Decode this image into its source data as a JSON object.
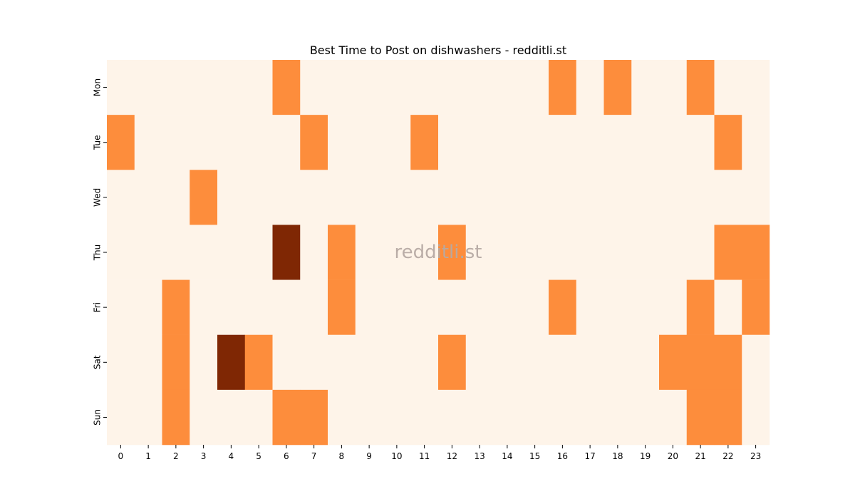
{
  "chart_data": {
    "type": "heatmap",
    "title": "Best Time to Post on dishwashers - redditli.st",
    "watermark": "redditli.st",
    "xlabel": "",
    "ylabel": "",
    "x_categories": [
      "0",
      "1",
      "2",
      "3",
      "4",
      "5",
      "6",
      "7",
      "8",
      "9",
      "10",
      "11",
      "12",
      "13",
      "14",
      "15",
      "16",
      "17",
      "18",
      "19",
      "20",
      "21",
      "22",
      "23"
    ],
    "y_categories": [
      "Mon",
      "Tue",
      "Wed",
      "Thu",
      "Fri",
      "Sat",
      "Sun"
    ],
    "values": [
      [
        0,
        0,
        0,
        0,
        0,
        0,
        1,
        0,
        0,
        0,
        0,
        0,
        0,
        0,
        0,
        0,
        1,
        0,
        1,
        0,
        0,
        1,
        0,
        0
      ],
      [
        1,
        0,
        0,
        0,
        0,
        0,
        0,
        1,
        0,
        0,
        0,
        1,
        0,
        0,
        0,
        0,
        0,
        0,
        0,
        0,
        0,
        0,
        1,
        0
      ],
      [
        0,
        0,
        0,
        1,
        0,
        0,
        0,
        0,
        0,
        0,
        0,
        0,
        0,
        0,
        0,
        0,
        0,
        0,
        0,
        0,
        0,
        0,
        0,
        0
      ],
      [
        0,
        0,
        0,
        0,
        0,
        0,
        2,
        0,
        1,
        0,
        0,
        0,
        1,
        0,
        0,
        0,
        0,
        0,
        0,
        0,
        0,
        0,
        1,
        1
      ],
      [
        0,
        0,
        1,
        0,
        0,
        0,
        0,
        0,
        1,
        0,
        0,
        0,
        0,
        0,
        0,
        0,
        1,
        0,
        0,
        0,
        0,
        1,
        0,
        1
      ],
      [
        0,
        0,
        1,
        0,
        2,
        1,
        0,
        0,
        0,
        0,
        0,
        0,
        1,
        0,
        0,
        0,
        0,
        0,
        0,
        0,
        1,
        1,
        1,
        0
      ],
      [
        0,
        0,
        1,
        0,
        0,
        0,
        1,
        1,
        0,
        0,
        0,
        0,
        0,
        0,
        0,
        0,
        0,
        0,
        0,
        0,
        0,
        1,
        1,
        0
      ]
    ],
    "colormap": [
      "#fef4e9",
      "#fd8d3c",
      "#7f2704"
    ],
    "colorbar": false,
    "grid": false
  }
}
